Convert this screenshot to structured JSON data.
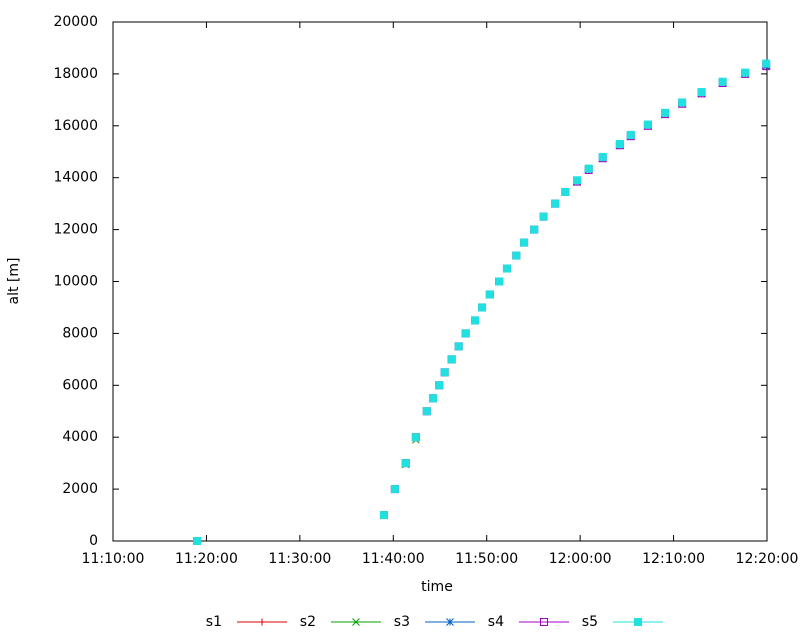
{
  "chart_data": {
    "type": "scatter",
    "xlabel": "time",
    "ylabel": "alt [m]",
    "xlim": [
      "11:10:00",
      "12:20:00"
    ],
    "xticks": [
      "11:10:00",
      "11:20:00",
      "11:30:00",
      "11:40:00",
      "11:50:00",
      "12:00:00",
      "12:10:00",
      "12:20:00"
    ],
    "ylim": [
      0,
      20000
    ],
    "yticks": [
      0,
      2000,
      4000,
      6000,
      8000,
      10000,
      12000,
      14000,
      16000,
      18000,
      20000
    ],
    "grid": false,
    "legend": "bottom",
    "x": [
      "11:19:00",
      "11:39:00",
      "11:40:10",
      "11:41:20",
      "11:42:25",
      "11:43:35",
      "11:44:15",
      "11:44:55",
      "11:45:30",
      "11:46:15",
      "11:47:00",
      "11:47:45",
      "11:48:45",
      "11:49:30",
      "11:50:20",
      "11:51:20",
      "11:52:10",
      "11:53:10",
      "11:54:00",
      "11:55:05",
      "11:56:05",
      "11:57:20",
      "11:58:25",
      "11:59:40",
      "12:00:55",
      "12:02:25",
      "12:04:15",
      "12:05:25",
      "12:07:15",
      "12:09:05",
      "12:10:55",
      "12:13:00",
      "12:15:15",
      "12:17:40",
      "12:19:55"
    ],
    "series": [
      {
        "name": "s1",
        "color": "#e00000",
        "marker": "plus",
        "values": [
          0,
          1000,
          2000,
          3000,
          4000,
          5000,
          5500,
          6000,
          6500,
          7000,
          7500,
          8000,
          8500,
          9000,
          9500,
          10000,
          10500,
          11000,
          11500,
          12000,
          12500,
          13000,
          13450,
          13850,
          14300,
          14750,
          15250,
          15600,
          16000,
          16450,
          16850,
          17250,
          17650,
          18000,
          18300
        ]
      },
      {
        "name": "s2",
        "color": "#00a000",
        "marker": "cross",
        "values": [
          0,
          1000,
          2000,
          2950,
          3900,
          5000,
          5500,
          6000,
          6500,
          7000,
          7500,
          8000,
          8500,
          9000,
          9500,
          10000,
          10500,
          11000,
          11500,
          12000,
          12500,
          13000,
          13450,
          13850,
          14300,
          14750,
          15250,
          15600,
          16000,
          16450,
          16850,
          17250,
          17650,
          18000,
          18300
        ]
      },
      {
        "name": "s3",
        "color": "#0060c0",
        "marker": "star",
        "values": [
          0,
          1000,
          2000,
          3000,
          4000,
          5000,
          5500,
          6000,
          6500,
          7000,
          7500,
          8000,
          8500,
          9000,
          9500,
          10000,
          10500,
          11000,
          11500,
          12000,
          12500,
          13000,
          13450,
          13850,
          14300,
          14750,
          15250,
          15600,
          16000,
          16450,
          16850,
          17250,
          17650,
          18000,
          18300
        ]
      },
      {
        "name": "s4",
        "color": "#a000c0",
        "marker": "square-open",
        "values": [
          0,
          1000,
          2000,
          3000,
          4000,
          5000,
          5500,
          6000,
          6500,
          7000,
          7500,
          8000,
          8500,
          9000,
          9500,
          10000,
          10500,
          11000,
          11500,
          12000,
          12500,
          13000,
          13450,
          13850,
          14300,
          14750,
          15250,
          15600,
          16000,
          16450,
          16850,
          17250,
          17650,
          18000,
          18300
        ]
      },
      {
        "name": "s5",
        "color": "#20e0e0",
        "marker": "square",
        "values": [
          0,
          1000,
          2000,
          3000,
          4000,
          5000,
          5500,
          6000,
          6500,
          7000,
          7500,
          8000,
          8500,
          9000,
          9500,
          10000,
          10500,
          11000,
          11500,
          12000,
          12500,
          13000,
          13450,
          13900,
          14350,
          14800,
          15300,
          15650,
          16050,
          16500,
          16900,
          17300,
          17700,
          18050,
          18400
        ]
      }
    ]
  }
}
